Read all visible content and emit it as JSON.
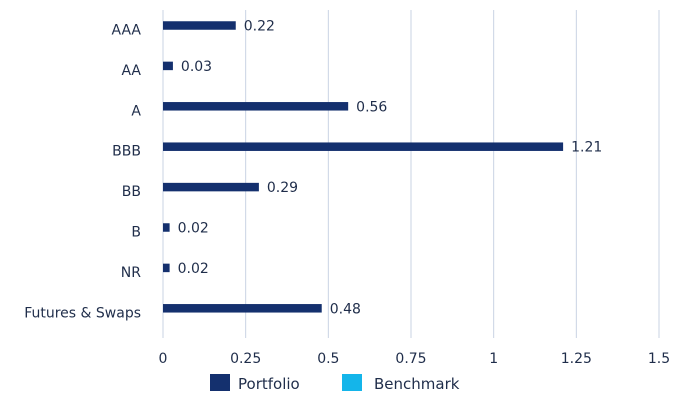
{
  "chart_data": {
    "type": "bar",
    "orientation": "horizontal",
    "categories": [
      "AAA",
      "AA",
      "A",
      "BBB",
      "BB",
      "B",
      "NR",
      "Futures & Swaps"
    ],
    "series": [
      {
        "name": "Portfolio",
        "color": "#14306e",
        "values": [
          0.22,
          0.03,
          0.56,
          1.21,
          0.29,
          0.02,
          0.02,
          0.48
        ],
        "labels": [
          "0.22",
          "0.03",
          "0.56",
          "1.21",
          "0.29",
          "0.02",
          "0.02",
          "0.48"
        ]
      },
      {
        "name": "Benchmark",
        "color": "#14b5ea",
        "values": [
          null,
          null,
          null,
          null,
          null,
          null,
          null,
          null
        ]
      }
    ],
    "xlim": [
      0,
      1.5
    ],
    "xticks": [
      0,
      0.25,
      0.5,
      0.75,
      1,
      1.25,
      1.5
    ],
    "xtick_labels": [
      "0",
      "0.25",
      "0.5",
      "0.75",
      "1",
      "1.25",
      "1.5"
    ],
    "grid": "vertical",
    "grid_color": "#c9d3e3",
    "legend_position": "bottom"
  }
}
